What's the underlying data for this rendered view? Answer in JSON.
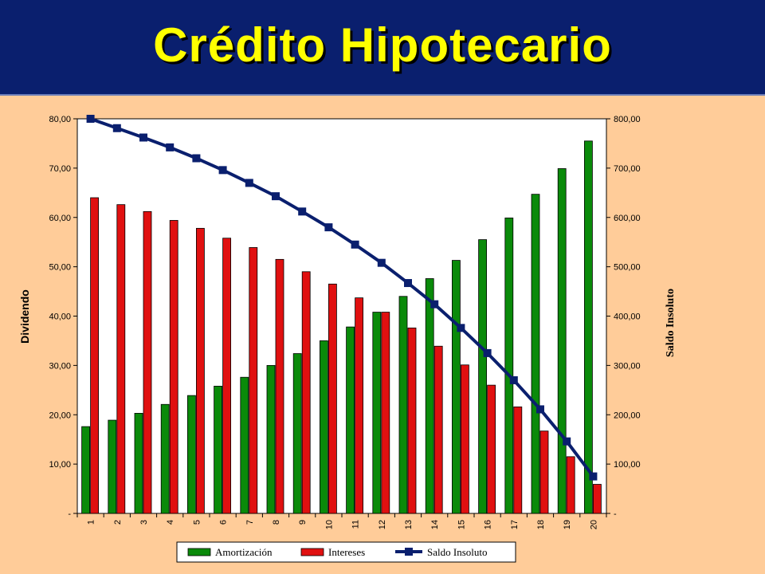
{
  "slide": {
    "title": "Crédito Hipotecario",
    "colors": {
      "header_bg": "#0a1f6e",
      "title": "#ffff00",
      "slide_bg": "#ffcc99",
      "plot_bg": "#ffffff",
      "amortizacion": "#0a8a0a",
      "intereses": "#e01010",
      "saldo": "#0a1f6e"
    }
  },
  "chart_data": {
    "type": "bar",
    "categories": [
      "1",
      "2",
      "3",
      "4",
      "5",
      "6",
      "7",
      "8",
      "9",
      "10",
      "11",
      "12",
      "13",
      "14",
      "15",
      "16",
      "17",
      "18",
      "19",
      "20"
    ],
    "ylabel": "Dividendo",
    "y2label": "Saldo Insoluto",
    "ylim": [
      0,
      80
    ],
    "y2lim": [
      0,
      800
    ],
    "yticks": [
      "-",
      "10,00",
      "20,00",
      "30,00",
      "40,00",
      "50,00",
      "60,00",
      "70,00",
      "80,00"
    ],
    "y2ticks": [
      "-",
      "100,00",
      "200,00",
      "300,00",
      "400,00",
      "500,00",
      "600,00",
      "700,00",
      "800,00"
    ],
    "grid": false,
    "legend_position": "bottom",
    "series": [
      {
        "name": "Amortización",
        "type": "bar",
        "axis": "left",
        "values": [
          17.6,
          18.9,
          20.3,
          22.1,
          23.9,
          25.8,
          27.6,
          30.0,
          32.4,
          35.0,
          37.8,
          40.8,
          44.0,
          47.6,
          51.3,
          55.5,
          59.9,
          64.7,
          69.9,
          75.5
        ]
      },
      {
        "name": "Intereses",
        "type": "bar",
        "axis": "left",
        "values": [
          64.0,
          62.6,
          61.2,
          59.4,
          57.8,
          55.8,
          53.9,
          51.5,
          49.0,
          46.5,
          43.7,
          40.8,
          37.6,
          33.9,
          30.1,
          26.0,
          21.6,
          16.7,
          11.5,
          5.9
        ]
      },
      {
        "name": "Saldo Insoluto",
        "type": "line",
        "axis": "right",
        "values": [
          800,
          781,
          762,
          742,
          720,
          696,
          670,
          643,
          612,
          580,
          545,
          508,
          467,
          424,
          376,
          325,
          270,
          211,
          146,
          75
        ]
      }
    ]
  }
}
